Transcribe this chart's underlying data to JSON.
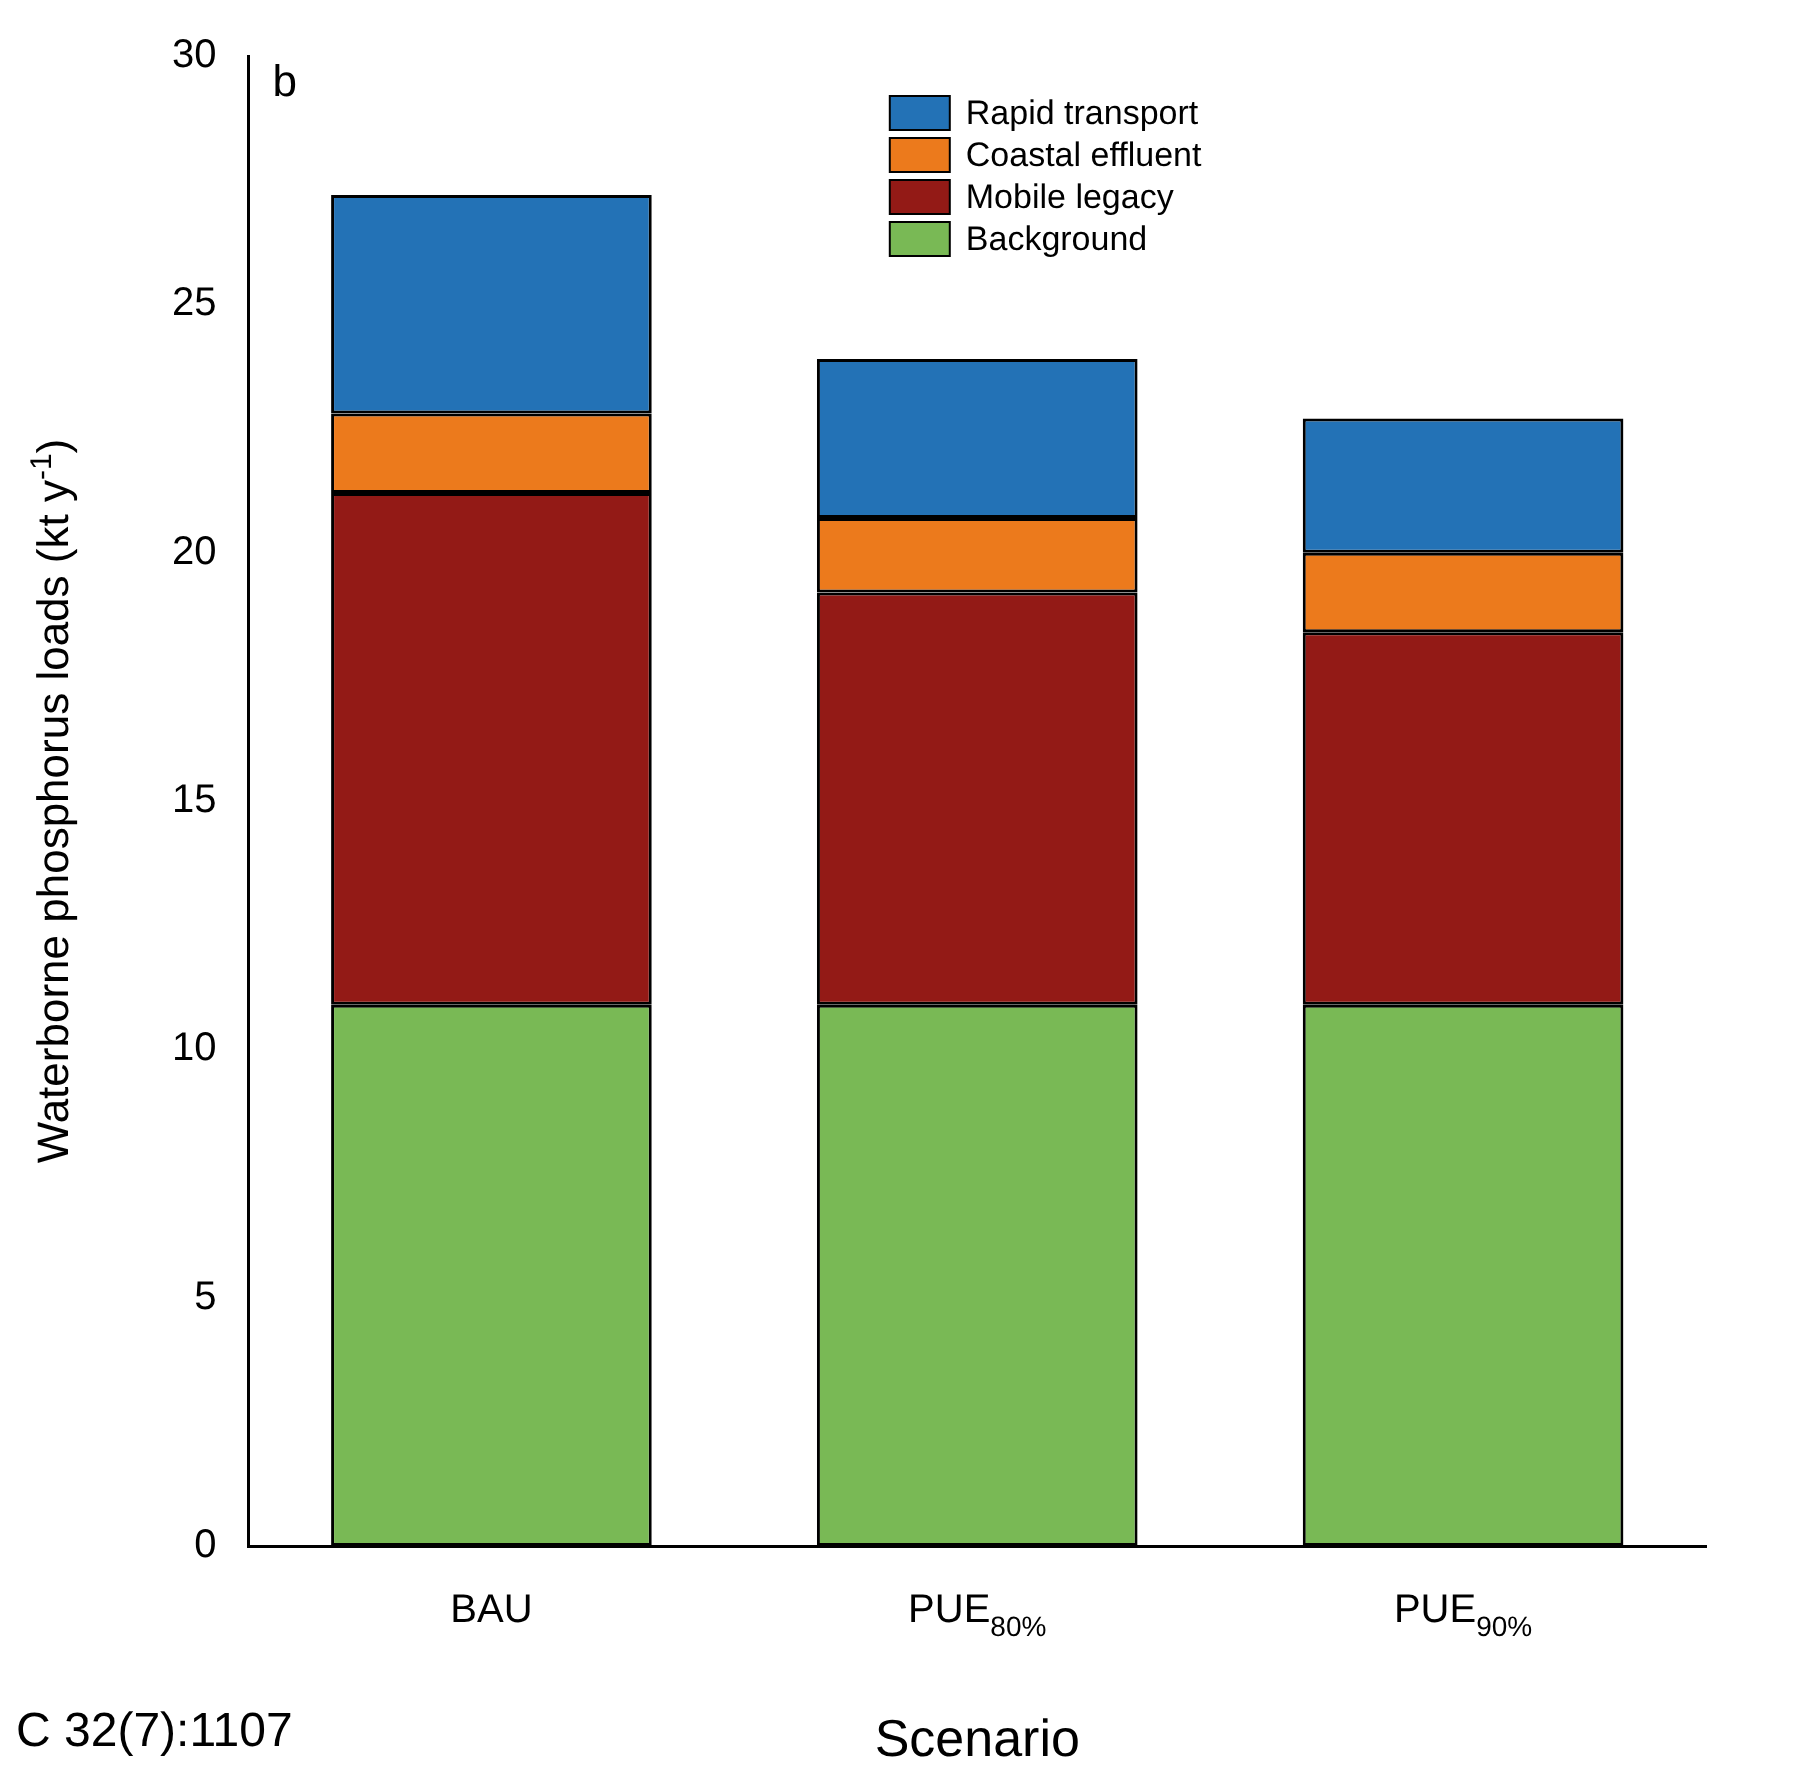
{
  "chart_data": {
    "type": "bar",
    "stacked": true,
    "xlabel": "Scenario",
    "ylabel": "Waterborne phosphorus loads (kt y$^{-1}$)",
    "categories": [
      "BAU",
      "PUE$_{80%}$",
      "PUE$_{90%}$"
    ],
    "series": [
      {
        "name": "Background",
        "color": "#79b955",
        "values": [
          10.9,
          10.9,
          10.9
        ]
      },
      {
        "name": "Mobile legacy",
        "color": "#931a16",
        "values": [
          10.3,
          8.3,
          7.5
        ]
      },
      {
        "name": "Coastal effluent",
        "color": "#ec7a1c",
        "values": [
          1.6,
          1.5,
          1.6
        ]
      },
      {
        "name": "Rapid transport",
        "color": "#2372b6",
        "values": [
          4.4,
          3.2,
          2.7
        ]
      }
    ],
    "ylim": [
      0,
      30
    ],
    "yticks": [
      0,
      5,
      10,
      15,
      20,
      25,
      30
    ],
    "legend": "top",
    "annotations": [
      "b",
      "C 32(7):1107"
    ]
  }
}
